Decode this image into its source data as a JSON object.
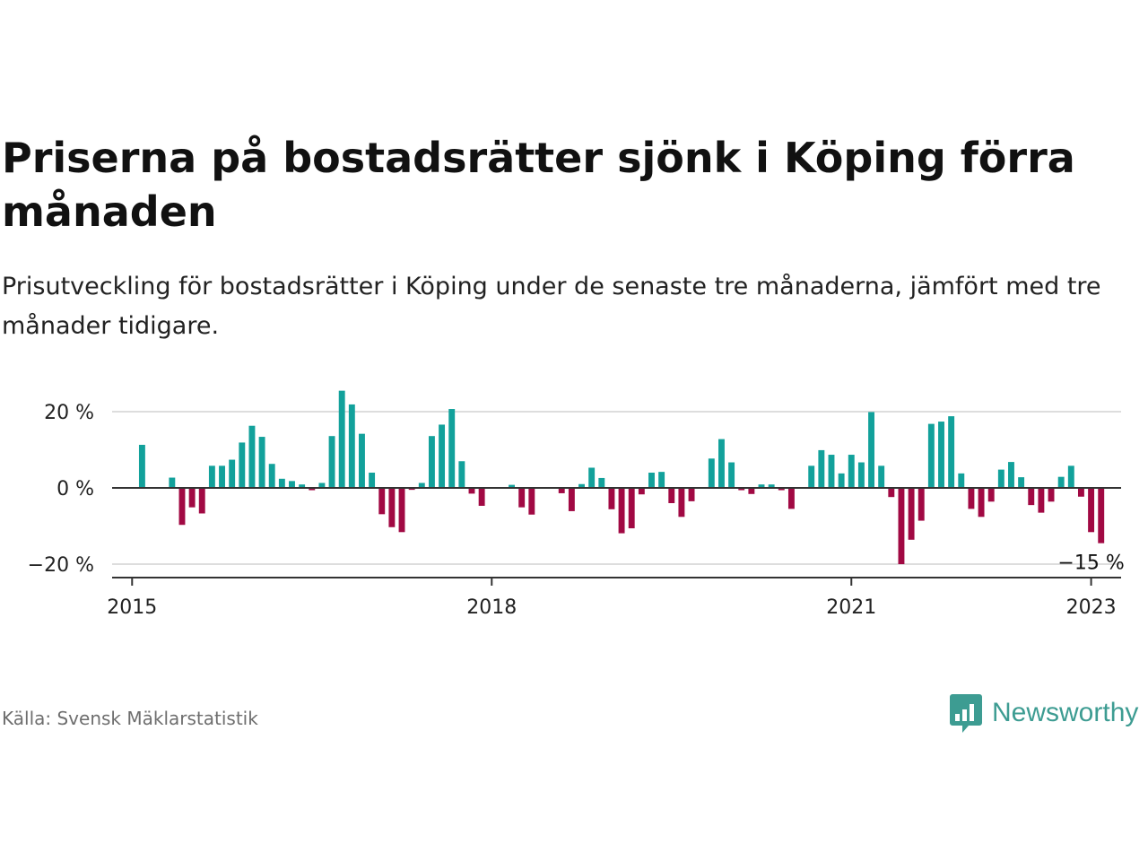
{
  "header": {
    "title": "Priserna på bostadsrätter sjönk i Köping förra månaden",
    "subtitle": "Prisutveckling för bostadsrätter i Köping under de senaste tre månaderna, jämfört med tre månader tidigare."
  },
  "footer": {
    "source": "Källa: Svensk Mäklarstatistik",
    "brand": "Newsworthy"
  },
  "colors": {
    "positive": "#12a19b",
    "negative": "#a10943",
    "gridline": "#dddddd",
    "zero_line": "#333333",
    "brand": "#3d9c92"
  },
  "chart_data": {
    "type": "bar",
    "title": "",
    "xlabel": "",
    "ylabel": "",
    "unit": "%",
    "x_range": [
      "2014-11",
      "2023-04"
    ],
    "ylim": [
      -22,
      27
    ],
    "y_ticks": [
      {
        "value": 20,
        "label": "20 %"
      },
      {
        "value": 0,
        "label": "0 %"
      },
      {
        "value": -20,
        "label": "−20 %"
      }
    ],
    "x_ticks": [
      {
        "date": "2015-01",
        "label": "2015"
      },
      {
        "date": "2018-01",
        "label": "2018"
      },
      {
        "date": "2021-01",
        "label": "2021"
      },
      {
        "date": "2023-01",
        "label": "2023"
      }
    ],
    "grid": true,
    "annotations": [
      {
        "date": "2023-01",
        "value": -14.5,
        "label": "−15 %"
      }
    ],
    "series": [
      {
        "start": "2014-12",
        "values": [
          null,
          null,
          11.3,
          null,
          null,
          2.7,
          -9.7,
          -5.1,
          -6.7,
          5.8,
          5.8,
          7.4,
          11.9,
          16.3,
          13.4,
          6.3,
          2.4,
          1.8,
          0.9,
          -0.6,
          1.3,
          13.6,
          25.5,
          21.9,
          14.2,
          4.0,
          -6.9,
          -10.3,
          -11.6,
          -0.5,
          1.3,
          13.6,
          16.6,
          20.7,
          7.0,
          -1.5,
          -4.7,
          null,
          null,
          0.8,
          -5.1,
          -7.0,
          null,
          null,
          -1.4,
          -6.1,
          1.0,
          5.3,
          2.6,
          -5.6,
          -11.9,
          -10.6,
          -1.7,
          4.0,
          4.2,
          -4.0,
          -7.6,
          -3.5,
          null,
          7.7,
          12.8,
          6.7,
          -0.6,
          -1.6,
          0.9,
          0.9,
          -0.6,
          -5.5,
          null,
          5.8,
          9.9,
          8.7,
          3.8,
          8.7,
          6.7,
          19.9,
          5.8,
          -2.4,
          -20.0,
          -13.6,
          -8.6,
          16.8,
          17.4,
          18.8,
          3.8,
          -5.5,
          -7.6,
          -3.6,
          4.8,
          6.8,
          2.8,
          -4.5,
          -6.5,
          -3.6,
          2.9,
          5.8,
          -2.3,
          -11.6,
          -14.5
        ]
      }
    ]
  }
}
